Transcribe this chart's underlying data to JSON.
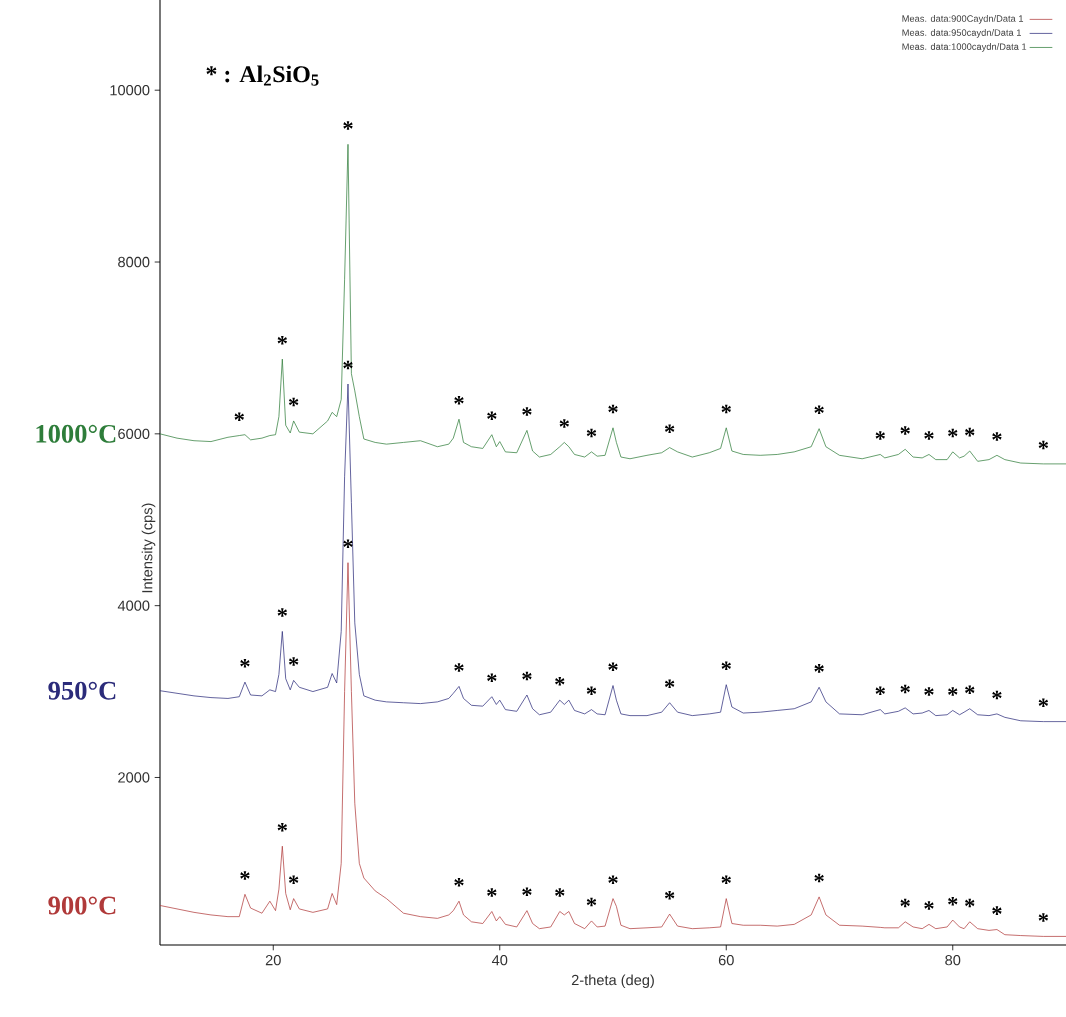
{
  "chart_data": {
    "type": "line",
    "xlabel": "2-theta (deg)",
    "ylabel": "Intensity (cps)",
    "xlim": [
      10,
      90
    ],
    "xticks": [
      20,
      40,
      60,
      80
    ],
    "ylim": [
      50,
      11050
    ],
    "yticks": [
      2000,
      4000,
      6000,
      8000,
      10000
    ],
    "legend": "top right",
    "grid": false,
    "x": [
      10,
      11.5,
      13,
      14.5,
      16,
      17,
      17.5,
      18,
      19,
      19.7,
      20.2,
      20.5,
      20.8,
      21.1,
      21.5,
      21.8,
      22.3,
      23.5,
      24.8,
      25.2,
      25.6,
      26.0,
      26.3,
      26.6,
      26.9,
      27.2,
      27.6,
      28,
      29,
      30,
      31.5,
      33,
      34.5,
      35.5,
      35.9,
      36.4,
      36.8,
      37.5,
      38.5,
      39.3,
      39.7,
      40.0,
      40.5,
      41.5,
      42.4,
      42.9,
      43.5,
      44.5,
      45.3,
      45.7,
      46.1,
      46.6,
      47.5,
      48.1,
      48.6,
      49.3,
      50.0,
      50.3,
      50.7,
      51.5,
      53,
      54.3,
      55.0,
      55.7,
      57,
      58.5,
      59.5,
      60.0,
      60.5,
      61.5,
      63,
      64.5,
      66,
      67.5,
      68.2,
      68.8,
      70,
      72,
      73.6,
      74,
      75.2,
      75.8,
      76.5,
      77.3,
      77.9,
      78.5,
      79.5,
      80.0,
      80.6,
      81.0,
      81.5,
      82.2,
      83.2,
      83.9,
      84.6,
      86,
      88,
      90
    ],
    "series": [
      {
        "name": "Meas. data:900Caydn/Data 1",
        "color": "#b03a3a",
        "values": [
          510,
          470,
          430,
          400,
          380,
          380,
          640,
          480,
          420,
          560,
          450,
          700,
          1200,
          650,
          460,
          590,
          470,
          430,
          470,
          650,
          520,
          1000,
          3000,
          4500,
          3000,
          1700,
          1000,
          830,
          680,
          590,
          420,
          380,
          360,
          400,
          450,
          560,
          400,
          320,
          300,
          440,
          330,
          380,
          290,
          260,
          450,
          300,
          240,
          260,
          440,
          400,
          440,
          300,
          240,
          330,
          260,
          270,
          590,
          500,
          280,
          240,
          250,
          260,
          410,
          270,
          240,
          250,
          260,
          590,
          300,
          280,
          280,
          270,
          290,
          400,
          610,
          400,
          280,
          270,
          255,
          250,
          250,
          320,
          260,
          240,
          290,
          240,
          260,
          340,
          260,
          240,
          320,
          240,
          220,
          230,
          170,
          160,
          150,
          150
        ]
      },
      {
        "name": "Meas. data:950caydn/Data 1",
        "color": "#2b2b7a",
        "values": [
          3010,
          2980,
          2950,
          2930,
          2920,
          2940,
          3110,
          2960,
          2950,
          3020,
          3000,
          3200,
          3700,
          3150,
          3020,
          3130,
          3050,
          3000,
          3050,
          3210,
          3100,
          3700,
          5500,
          6580,
          5200,
          3800,
          3200,
          2950,
          2900,
          2880,
          2870,
          2860,
          2880,
          2920,
          2980,
          3060,
          2920,
          2840,
          2830,
          2940,
          2850,
          2900,
          2790,
          2770,
          2960,
          2800,
          2730,
          2760,
          2900,
          2850,
          2900,
          2780,
          2740,
          2790,
          2740,
          2730,
          3070,
          2900,
          2740,
          2720,
          2720,
          2760,
          2870,
          2760,
          2720,
          2740,
          2760,
          3080,
          2820,
          2750,
          2760,
          2780,
          2800,
          2880,
          3050,
          2880,
          2740,
          2730,
          2790,
          2740,
          2770,
          2810,
          2740,
          2750,
          2780,
          2720,
          2730,
          2780,
          2730,
          2760,
          2800,
          2730,
          2720,
          2740,
          2700,
          2660,
          2650,
          2650
        ]
      },
      {
        "name": "Meas. data:1000caydn/Data 1",
        "color": "#2e7d3a",
        "values": [
          6000,
          5950,
          5920,
          5910,
          5960,
          5980,
          5990,
          5930,
          5950,
          5980,
          5990,
          6200,
          6870,
          6100,
          6010,
          6150,
          6020,
          6000,
          6150,
          6250,
          6200,
          6400,
          7800,
          9370,
          6700,
          6500,
          6200,
          5940,
          5900,
          5880,
          5900,
          5920,
          5850,
          5880,
          5950,
          6170,
          5900,
          5850,
          5830,
          5990,
          5850,
          5910,
          5790,
          5780,
          6040,
          5800,
          5730,
          5760,
          5850,
          5900,
          5850,
          5760,
          5730,
          5790,
          5740,
          5750,
          6070,
          5900,
          5730,
          5710,
          5750,
          5780,
          5840,
          5790,
          5730,
          5780,
          5830,
          6070,
          5800,
          5760,
          5750,
          5760,
          5790,
          5850,
          6060,
          5850,
          5750,
          5710,
          5760,
          5720,
          5760,
          5820,
          5730,
          5720,
          5760,
          5700,
          5700,
          5790,
          5720,
          5740,
          5800,
          5680,
          5700,
          5750,
          5700,
          5660,
          5650,
          5650
        ]
      }
    ],
    "annotations": [
      "900°C",
      "950°C",
      "1000°C",
      "*  : Al$_{2}$SiO$_{5}$",
      {
        "text": "*",
        "x": 17,
        "y": 5980
      },
      {
        "text": "*",
        "x": 20.8,
        "y": 6870
      },
      {
        "text": "*",
        "x": 21.8,
        "y": 6150
      },
      {
        "text": "*",
        "x": 26.6,
        "y": 9370
      },
      {
        "text": "*",
        "x": 36.4,
        "y": 6170
      },
      {
        "text": "*",
        "x": 39.3,
        "y": 5990
      },
      {
        "text": "*",
        "x": 42.4,
        "y": 6040
      },
      {
        "text": "*",
        "x": 45.7,
        "y": 5900
      },
      {
        "text": "*",
        "x": 48.1,
        "y": 5790
      },
      {
        "text": "*",
        "x": 50.0,
        "y": 6070
      },
      {
        "text": "*",
        "x": 55.0,
        "y": 5840
      },
      {
        "text": "*",
        "x": 60.0,
        "y": 6070
      },
      {
        "text": "*",
        "x": 68.2,
        "y": 6060
      },
      {
        "text": "*",
        "x": 73.6,
        "y": 5760
      },
      {
        "text": "*",
        "x": 75.8,
        "y": 5820
      },
      {
        "text": "*",
        "x": 77.9,
        "y": 5760
      },
      {
        "text": "*",
        "x": 80.0,
        "y": 5790
      },
      {
        "text": "*",
        "x": 81.5,
        "y": 5800
      },
      {
        "text": "*",
        "x": 83.9,
        "y": 5750
      },
      {
        "text": "*",
        "x": 88,
        "y": 5650
      },
      {
        "text": "*",
        "x": 17.5,
        "y": 3110
      },
      {
        "text": "*",
        "x": 20.8,
        "y": 3700
      },
      {
        "text": "*",
        "x": 21.8,
        "y": 3130
      },
      {
        "text": "*",
        "x": 26.6,
        "y": 6580
      },
      {
        "text": "*",
        "x": 36.4,
        "y": 3060
      },
      {
        "text": "*",
        "x": 39.3,
        "y": 2940
      },
      {
        "text": "*",
        "x": 42.4,
        "y": 2960
      },
      {
        "text": "*",
        "x": 45.3,
        "y": 2900
      },
      {
        "text": "*",
        "x": 48.1,
        "y": 2790
      },
      {
        "text": "*",
        "x": 50.0,
        "y": 3070
      },
      {
        "text": "*",
        "x": 55.0,
        "y": 2870
      },
      {
        "text": "*",
        "x": 60.0,
        "y": 3080
      },
      {
        "text": "*",
        "x": 68.2,
        "y": 3050
      },
      {
        "text": "*",
        "x": 73.6,
        "y": 2790
      },
      {
        "text": "*",
        "x": 75.8,
        "y": 2810
      },
      {
        "text": "*",
        "x": 77.9,
        "y": 2780
      },
      {
        "text": "*",
        "x": 80.0,
        "y": 2780
      },
      {
        "text": "*",
        "x": 81.5,
        "y": 2800
      },
      {
        "text": "*",
        "x": 83.9,
        "y": 2740
      },
      {
        "text": "*",
        "x": 88,
        "y": 2650
      },
      {
        "text": "*",
        "x": 26.6,
        "y": 4500
      },
      {
        "text": "*",
        "x": 17.5,
        "y": 640
      },
      {
        "text": "*",
        "x": 20.8,
        "y": 1200
      },
      {
        "text": "*",
        "x": 21.8,
        "y": 590
      },
      {
        "text": "*",
        "x": 36.4,
        "y": 560
      },
      {
        "text": "*",
        "x": 39.3,
        "y": 440
      },
      {
        "text": "*",
        "x": 42.4,
        "y": 450
      },
      {
        "text": "*",
        "x": 45.3,
        "y": 440
      },
      {
        "text": "*",
        "x": 48.1,
        "y": 330
      },
      {
        "text": "*",
        "x": 50.0,
        "y": 590
      },
      {
        "text": "*",
        "x": 55.0,
        "y": 410
      },
      {
        "text": "*",
        "x": 60.0,
        "y": 590
      },
      {
        "text": "*",
        "x": 68.2,
        "y": 610
      },
      {
        "text": "*",
        "x": 75.8,
        "y": 320
      },
      {
        "text": "*",
        "x": 77.9,
        "y": 290
      },
      {
        "text": "*",
        "x": 80.0,
        "y": 340
      },
      {
        "text": "*",
        "x": 81.5,
        "y": 320
      },
      {
        "text": "*",
        "x": 83.9,
        "y": 230
      },
      {
        "text": "*",
        "x": 88,
        "y": 150
      }
    ]
  }
}
